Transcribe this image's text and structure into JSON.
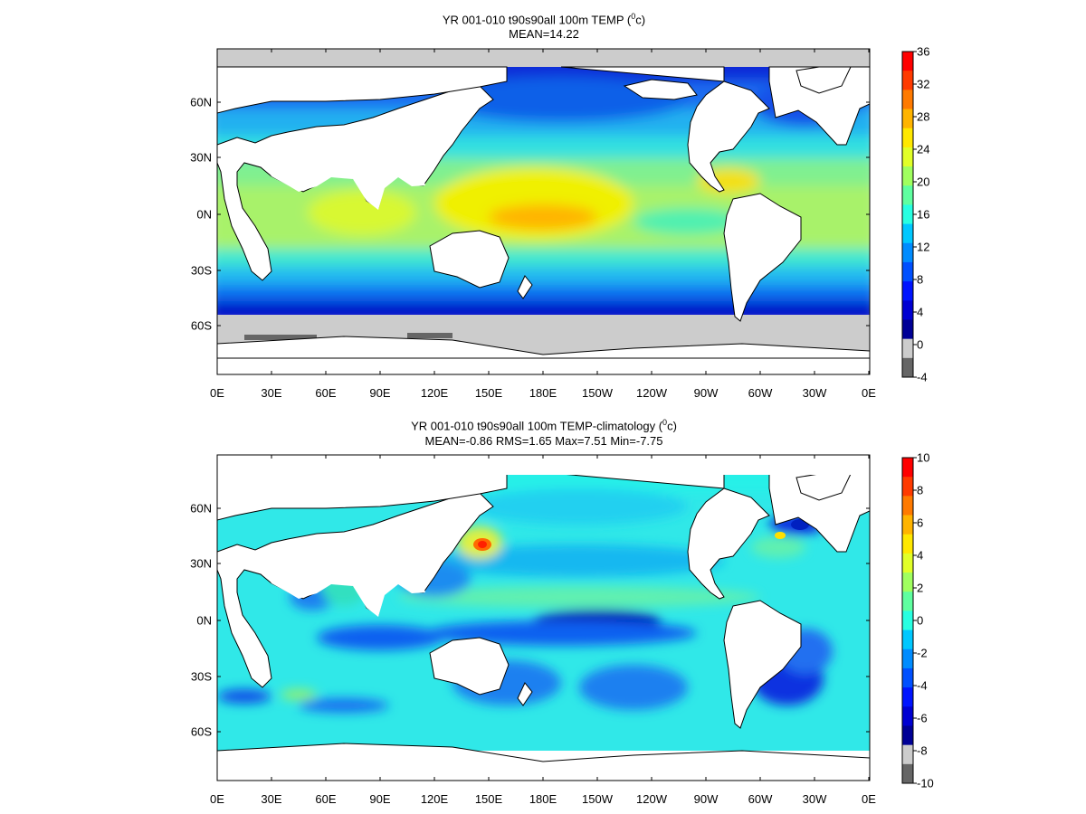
{
  "map_top": {
    "title_line1": "YR 001-010 t90s90all 100m TEMP (",
    "title_sup": "0",
    "title_unit_tail": "c)",
    "title_line2": "MEAN=14.22",
    "lat_labels": [
      "60N",
      "30N",
      "0N",
      "30S",
      "60S"
    ],
    "lon_labels": [
      "0E",
      "30E",
      "60E",
      "90E",
      "120E",
      "150E",
      "180E",
      "150W",
      "120W",
      "90W",
      "60W",
      "30W",
      "0E"
    ],
    "colorbar": {
      "labels": [
        "36",
        "32",
        "28",
        "24",
        "20",
        "16",
        "12",
        "8",
        "4",
        "0",
        "-4"
      ],
      "colors": [
        "#ff0000",
        "#ff3a00",
        "#ff7a00",
        "#ffb400",
        "#ffe800",
        "#e1ff28",
        "#a0ff5f",
        "#5fffa0",
        "#28ffe1",
        "#00c8ff",
        "#008cff",
        "#0050ff",
        "#0014ff",
        "#0000d2",
        "#000096",
        "#cccccc",
        "#666666"
      ]
    }
  },
  "map_bottom": {
    "title_line1": "YR 001-010 t90s90all 100m TEMP-climatology (",
    "title_sup": "0",
    "title_unit_tail": "c)",
    "title_line2": "MEAN=-0.86   RMS=1.65   Max=7.51   Min=-7.75",
    "lat_labels": [
      "60N",
      "30N",
      "0N",
      "30S",
      "60S"
    ],
    "lon_labels": [
      "0E",
      "30E",
      "60E",
      "90E",
      "120E",
      "150E",
      "180E",
      "150W",
      "120W",
      "90W",
      "60W",
      "30W",
      "0E"
    ],
    "colorbar": {
      "labels": [
        "10",
        "8",
        "6",
        "4",
        "2",
        "0",
        "-2",
        "-4",
        "-6",
        "-8",
        "-10"
      ],
      "colors": [
        "#ff0000",
        "#ff3a00",
        "#ff7a00",
        "#ffb400",
        "#ffe800",
        "#e1ff28",
        "#a0ff5f",
        "#5fffa0",
        "#28ffe1",
        "#00c8ff",
        "#008cff",
        "#0050ff",
        "#0014ff",
        "#0000d2",
        "#000096",
        "#cccccc",
        "#666666"
      ]
    }
  }
}
